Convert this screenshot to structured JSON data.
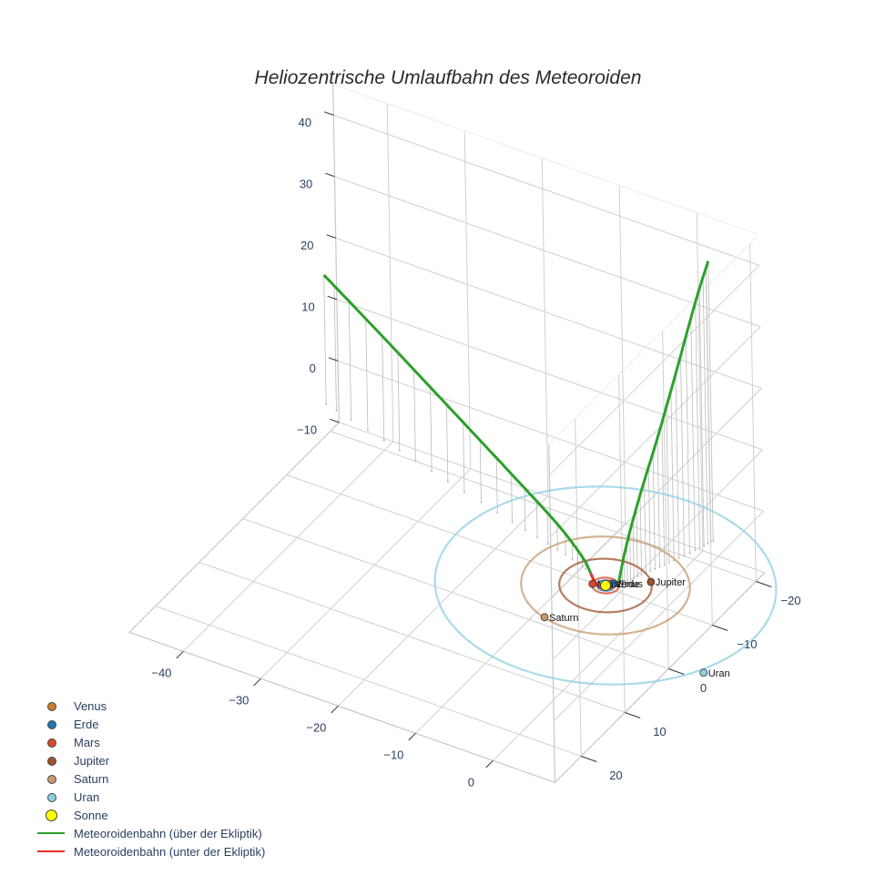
{
  "title": "Heliozentrische Umlaufbahn des Meteoroiden",
  "legend": [
    {
      "name": "Venus",
      "kind": "marker",
      "color": "#c8802a"
    },
    {
      "name": "Erde",
      "kind": "marker",
      "color": "#1f77b4"
    },
    {
      "name": "Mars",
      "kind": "marker",
      "color": "#d9482b"
    },
    {
      "name": "Jupiter",
      "kind": "marker",
      "color": "#a0522d"
    },
    {
      "name": "Saturn",
      "kind": "marker",
      "color": "#c49a6c"
    },
    {
      "name": "Uran",
      "kind": "marker",
      "color": "#8ecfe0"
    },
    {
      "name": "Sonne",
      "kind": "marker_big",
      "color": "#ffff00"
    },
    {
      "name": "Meteoroidenbahn (über der Ekliptik)",
      "kind": "line",
      "color": "#2ca02c"
    },
    {
      "name": "Meteoroidenbahn (unter der Ekliptik)",
      "kind": "line",
      "color": "#e8302a"
    }
  ],
  "chart_data": {
    "type": "scatter3d",
    "title": "Heliozentrische Umlaufbahn des Meteoroiden",
    "axes": {
      "x": {
        "ticks": [
          -40,
          -30,
          -20,
          -10,
          0
        ],
        "range": [
          -47,
          8
        ]
      },
      "y": {
        "ticks": [
          -20,
          -10,
          0,
          10,
          20
        ],
        "range": [
          -22,
          26
        ]
      },
      "z": {
        "ticks": [
          -10,
          0,
          10,
          20,
          30,
          40
        ],
        "range": [
          -10,
          45
        ]
      }
    },
    "grid": true,
    "legend_position": "bottom-left",
    "orbits": [
      {
        "name": "Venus",
        "radius": 0.72,
        "color": "#c8802a"
      },
      {
        "name": "Erde",
        "radius": 1.0,
        "color": "#1f77b4"
      },
      {
        "name": "Mars",
        "radius": 1.52,
        "color": "#d9482b"
      },
      {
        "name": "Jupiter",
        "radius": 5.2,
        "color": "#a0522d"
      },
      {
        "name": "Saturn",
        "radius": 9.5,
        "color": "#c49a6c"
      },
      {
        "name": "Uran",
        "radius": 19.2,
        "color": "#8ecfe0"
      }
    ],
    "planets": [
      {
        "name": "Venus",
        "x": 0.3,
        "y": -0.6,
        "z": 0,
        "label": "Venus"
      },
      {
        "name": "Erde",
        "x": 0.6,
        "y": -0.8,
        "z": 0,
        "label": "Erde"
      },
      {
        "name": "Mars",
        "x": -1.4,
        "y": 0.5,
        "z": 0,
        "label": "Mars"
      },
      {
        "name": "Jupiter",
        "x": 4.0,
        "y": -3.3,
        "z": 0,
        "label": "Jupiter"
      },
      {
        "name": "Saturn",
        "x": -2.8,
        "y": 9.0,
        "z": 0,
        "label": "Saturn"
      },
      {
        "name": "Uran",
        "x": 17.7,
        "y": 8.9,
        "z": 0,
        "label": "Uran"
      },
      {
        "name": "Sonne",
        "x": 0,
        "y": 0,
        "z": 0,
        "label": ""
      }
    ],
    "trajectory_above": {
      "name": "Meteoroidenbahn (über der Ekliptik)",
      "color": "#2ca02c",
      "branch_1": [
        [
          -44,
          -14,
          21
        ],
        [
          -35,
          -11.3,
          17
        ],
        [
          -25,
          -8.2,
          12.5
        ],
        [
          -15,
          -5.2,
          7.8
        ],
        [
          -8,
          -3.2,
          4.2
        ],
        [
          -4,
          -1.8,
          1.6
        ],
        [
          -2.6,
          -1.2,
          0
        ]
      ],
      "branch_2": [
        [
          1.0,
          -1.2,
          0
        ],
        [
          1.6,
          -2.2,
          6
        ],
        [
          2.4,
          -4.0,
          13
        ],
        [
          3.4,
          -6.4,
          21
        ],
        [
          4.4,
          -9.0,
          30
        ],
        [
          5.4,
          -12.0,
          40
        ],
        [
          6.0,
          -14.0,
          45.5
        ]
      ]
    },
    "trajectory_below": {
      "name": "Meteoroidenbahn (unter der Ekliptik)",
      "color": "#e8302a",
      "points": [
        [
          -2.6,
          -1.2,
          0
        ],
        [
          -1.6,
          -0.4,
          -0.4
        ],
        [
          -0.4,
          0.1,
          -0.5
        ],
        [
          0.6,
          -0.4,
          -0.3
        ],
        [
          1.0,
          -1.2,
          0
        ]
      ]
    }
  }
}
